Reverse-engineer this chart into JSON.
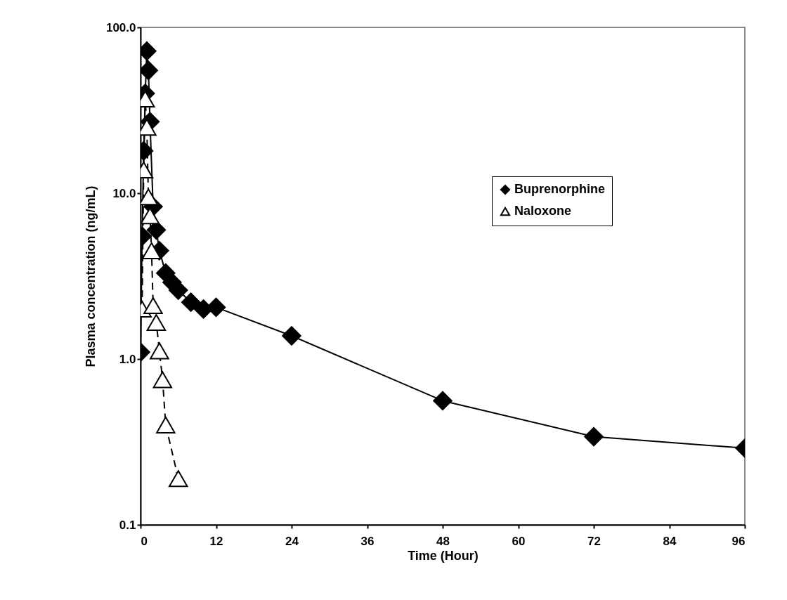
{
  "chart_data": {
    "type": "line",
    "xlabel": "Time (Hour)",
    "ylabel": "Plasma concentration (ng/mL)",
    "log": "y",
    "xlim": [
      0,
      96
    ],
    "xticks": [
      0,
      12,
      24,
      36,
      48,
      60,
      72,
      84,
      96
    ],
    "ylim": [
      0.1,
      100
    ],
    "yticks": [
      {
        "value": 0.1,
        "label": "0.1"
      },
      {
        "value": 1,
        "label": "1.0"
      },
      {
        "value": 10,
        "label": "10.0"
      },
      {
        "value": 100,
        "label": "100.0"
      }
    ],
    "grid": false,
    "legend": "right",
    "series": [
      {
        "name": "Buprenorphine",
        "color": "#000000",
        "marker": "diamond",
        "line_style": "solid",
        "x": [
          0,
          0.25,
          0.5,
          0.75,
          1,
          1.25,
          1.5,
          2,
          2.5,
          3,
          4,
          5,
          6,
          8,
          10,
          12,
          24,
          48,
          72,
          96
        ],
        "values": [
          1.1,
          5.5,
          18,
          40,
          72,
          55,
          27,
          8.3,
          6,
          4.5,
          3.3,
          2.9,
          2.6,
          2.2,
          2.0,
          2.05,
          1.38,
          0.56,
          0.34,
          0.29
        ]
      },
      {
        "name": "Naloxone",
        "color": "#000000",
        "marker": "triangle",
        "line_style": "dashed",
        "x": [
          0.25,
          0.5,
          0.75,
          1,
          1.25,
          1.5,
          1.75,
          2,
          2.5,
          3,
          3.5,
          4,
          6
        ],
        "values": [
          2.0,
          13.8,
          37,
          25,
          9.5,
          7.3,
          4.5,
          2.1,
          1.66,
          1.12,
          0.75,
          0.4,
          0.19
        ]
      }
    ]
  }
}
